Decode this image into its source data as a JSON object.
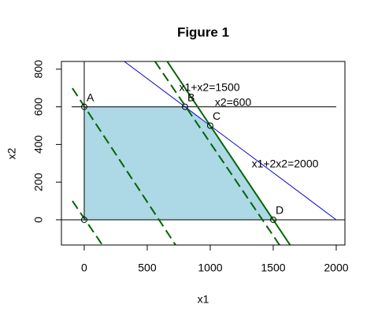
{
  "chart_data": {
    "type": "line",
    "title": "Figure 1",
    "x_label": "x1",
    "y_label": "x2",
    "xlim": [
      -181,
      2069
    ],
    "ylim": [
      -134,
      841
    ],
    "xticks": [
      0,
      500,
      1000,
      1500,
      2000
    ],
    "yticks": [
      0,
      200,
      400,
      600,
      800
    ],
    "region": {
      "color": "#add8e6",
      "x": [
        0,
        0,
        800,
        1000,
        1500
      ],
      "y": [
        0,
        600,
        600,
        500,
        0
      ]
    },
    "lines": [
      {
        "color": "#000000",
        "width": 1,
        "dashed": false,
        "x": [
          -100,
          2000
        ],
        "y": [
          600,
          600
        ]
      },
      {
        "color": "#000000",
        "width": 1,
        "dashed": false,
        "x": [
          -181,
          2069
        ],
        "y": [
          0,
          0
        ]
      },
      {
        "color": "#000000",
        "width": 1,
        "dashed": false,
        "x": [
          0,
          0
        ],
        "y": [
          841,
          0
        ]
      },
      {
        "color": "#0000cd",
        "width": 1,
        "dashed": false,
        "x": [
          318,
          2000
        ],
        "y": [
          841,
          0
        ]
      },
      {
        "color": "#006400",
        "width": 2,
        "dashed": false,
        "x": [
          659,
          1634
        ],
        "y": [
          841,
          -134
        ]
      },
      {
        "color": "#006400",
        "width": 2,
        "dashed": true,
        "x": [
          -94,
          725
        ],
        "y": [
          699,
          -134
        ]
      },
      {
        "color": "#006400",
        "width": 2,
        "dashed": true,
        "x": [
          -94,
          144
        ],
        "y": [
          100,
          -134
        ]
      },
      {
        "color": "#006400",
        "width": 2,
        "dashed": true,
        "x": [
          562,
          1550
        ],
        "y": [
          841,
          -134
        ]
      }
    ],
    "points": [
      {
        "label": "A",
        "x": 0,
        "y": 600
      },
      {
        "label": "B",
        "x": 800,
        "y": 600
      },
      {
        "label": "C",
        "x": 1000,
        "y": 500
      },
      {
        "label": "D",
        "x": 1500,
        "y": 0
      },
      {
        "label": null,
        "x": 0,
        "y": 0
      }
    ],
    "annotations": [
      {
        "text": "x1+x2=1500",
        "color": "#ff0000"
      },
      {
        "text": "x2=600",
        "color": "#000000"
      },
      {
        "text": "x1+2x2=2000",
        "color": "#0000cd"
      }
    ]
  }
}
